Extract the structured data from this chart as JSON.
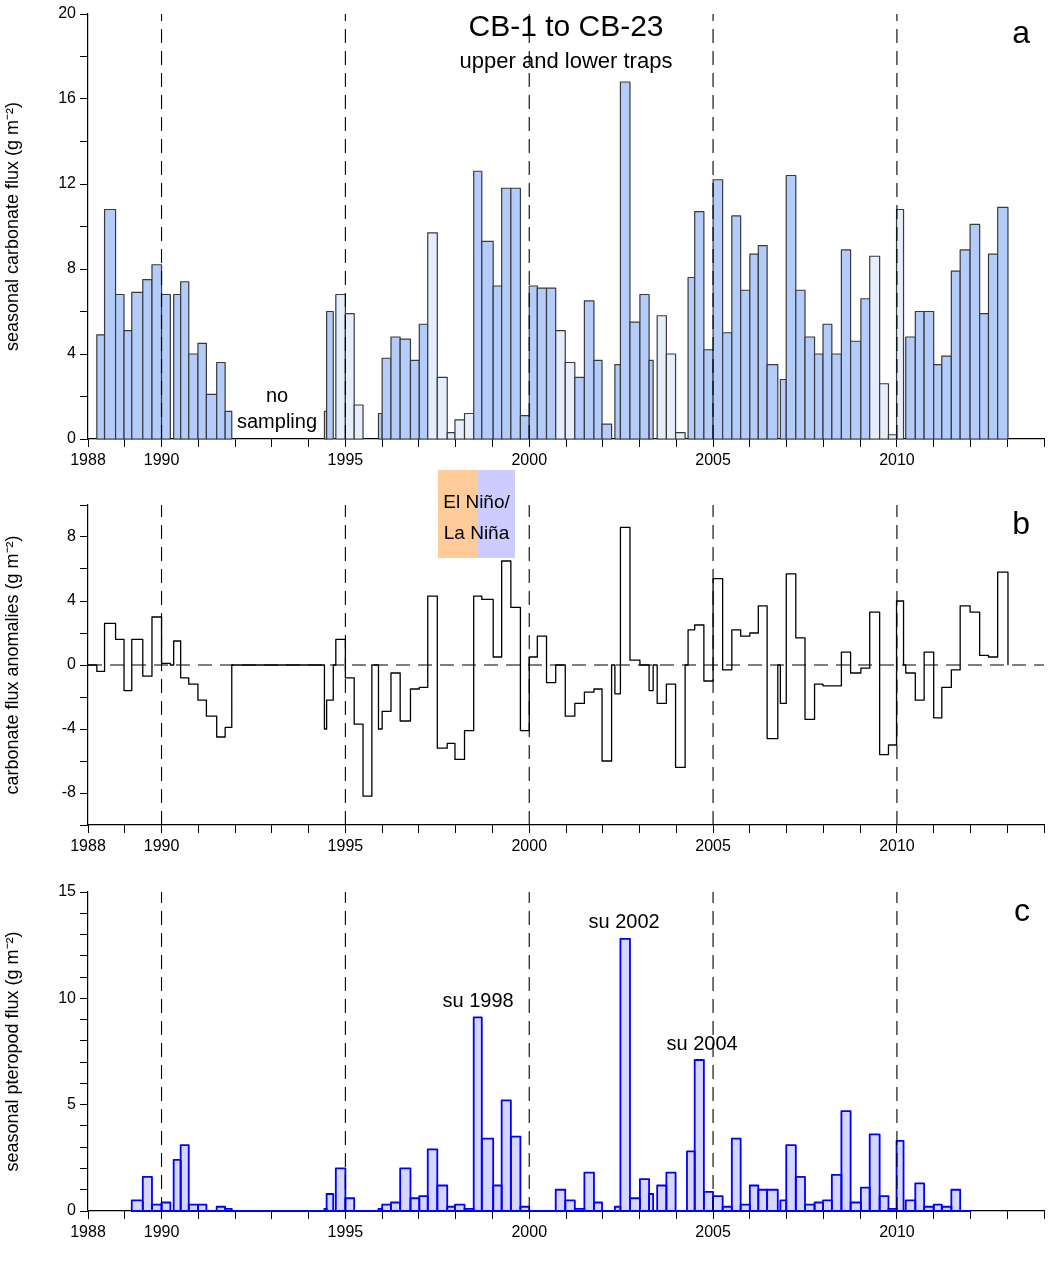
{
  "chart_data": [
    {
      "type": "histogram",
      "title": "CB-1 to CB-23",
      "subtitle": "upper and lower traps",
      "ylabel": "seasonal carbonate flux (g m⁻²)",
      "bins": [
        1988.24,
        1988.45,
        1988.75,
        1988.98,
        1989.19,
        1989.49,
        1989.74,
        1990.0,
        1990.24,
        1990.33,
        1990.52,
        1990.74,
        1990.99,
        1991.22,
        1991.5,
        1991.73,
        1991.91,
        1994.43,
        1994.49,
        1994.67,
        1994.74,
        1995.0,
        1995.24,
        1995.48,
        1995.9,
        1996.0,
        1996.24,
        1996.49,
        1996.77,
        1997.01,
        1997.24,
        1997.5,
        1997.77,
        1997.98,
        1998.24,
        1998.49,
        1998.71,
        1999.02,
        1999.25,
        1999.5,
        1999.76,
        2000.0,
        2000.22,
        2000.47,
        2000.72,
        2000.98,
        2001.24,
        2001.5,
        2001.76,
        2001.98,
        2002.24,
        2002.33,
        2002.48,
        2002.74,
        2003.01,
        2003.26,
        2003.37,
        2003.48,
        2003.73,
        2003.98,
        2004.24,
        2004.32,
        2004.5,
        2004.75,
        2005.0,
        2005.26,
        2005.51,
        2005.75,
        2006.0,
        2006.23,
        2006.47,
        2006.76,
        2006.83,
        2006.99,
        2007.25,
        2007.5,
        2007.76,
        2007.99,
        2008.23,
        2008.49,
        2008.74,
        2009.02,
        2009.26,
        2009.53,
        2009.77,
        2009.99,
        2010.18,
        2010.24,
        2010.5,
        2010.74,
        2011.0,
        2011.22,
        2011.48,
        2011.72,
        2011.99,
        2012.25,
        2012.49,
        2012.74,
        2013.02
      ],
      "values": [
        4.9,
        10.8,
        6.8,
        5.1,
        6.9,
        7.5,
        8.2,
        6.8,
        null,
        6.8,
        7.4,
        4.0,
        4.5,
        2.1,
        3.6,
        1.3,
        null,
        1.3,
        6.0,
        null,
        6.8,
        5.9,
        1.6,
        null,
        1.2,
        3.8,
        4.8,
        4.7,
        3.7,
        5.4,
        9.7,
        2.9,
        0.3,
        0.9,
        1.2,
        12.6,
        9.3,
        7.2,
        11.8,
        11.8,
        1.1,
        7.2,
        7.1,
        7.1,
        5.1,
        3.6,
        2.9,
        6.5,
        3.7,
        0.7,
        null,
        3.5,
        16.8,
        5.5,
        6.8,
        3.7,
        null,
        5.8,
        4.0,
        0.3,
        null,
        7.6,
        10.7,
        4.2,
        12.2,
        5.0,
        10.5,
        7.0,
        8.7,
        9.1,
        3.5,
        null,
        2.8,
        12.4,
        7.0,
        4.8,
        4.0,
        5.4,
        4.0,
        8.9,
        4.6,
        6.6,
        8.6,
        2.6,
        0.2,
        10.8,
        null,
        4.8,
        6.0,
        6.0,
        3.5,
        3.9,
        7.9,
        8.9,
        10.1,
        5.9,
        8.7,
        10.9
      ],
      "colors": [
        "#b3ccfa",
        "#b3ccfa",
        "#b3ccfa",
        "#b3ccfa",
        "#b3ccfa",
        "#b3ccfa",
        "#b3ccfa",
        "#b3ccfa",
        null,
        "#b3ccfa",
        "#b3ccfa",
        "#b3ccfa",
        "#b3ccfa",
        "#b3ccfa",
        "#b3ccfa",
        "#b3ccfa",
        null,
        "#b3ccfa",
        "#b3ccfa",
        null,
        "#e6eefc",
        "#e6eefc",
        "#e6eefc",
        null,
        "#b3ccfa",
        "#b3ccfa",
        "#b3ccfa",
        "#b3ccfa",
        "#b3ccfa",
        "#b3ccfa",
        "#e6eefc",
        "#e6eefc",
        "#e6eefc",
        "#e6eefc",
        "#e6eefc",
        "#b3ccfa",
        "#b3ccfa",
        "#b3ccfa",
        "#b3ccfa",
        "#b3ccfa",
        "#b3ccfa",
        "#b3ccfa",
        "#b3ccfa",
        "#b3ccfa",
        "#e6eefc",
        "#e6eefc",
        "#b3ccfa",
        "#b3ccfa",
        "#b3ccfa",
        "#b3ccfa",
        null,
        "#b3ccfa",
        "#b3ccfa",
        "#b3ccfa",
        "#b3ccfa",
        "#b3ccfa",
        null,
        "#e6eefc",
        "#e6eefc",
        "#e6eefc",
        null,
        "#b3ccfa",
        "#b3ccfa",
        "#b3ccfa",
        "#b3ccfa",
        "#b3ccfa",
        "#b3ccfa",
        "#b3ccfa",
        "#b3ccfa",
        "#b3ccfa",
        "#b3ccfa",
        null,
        "#b3ccfa",
        "#b3ccfa",
        "#b3ccfa",
        "#b3ccfa",
        "#b3ccfa",
        "#b3ccfa",
        "#b3ccfa",
        "#b3ccfa",
        "#b3ccfa",
        "#b3ccfa",
        "#e6eefc",
        "#e6eefc",
        "#e6eefc",
        "#e6eefc",
        null,
        "#b3ccfa",
        "#b3ccfa",
        "#b3ccfa",
        "#b3ccfa",
        "#b3ccfa",
        "#b3ccfa",
        "#b3ccfa",
        "#b3ccfa",
        "#b3ccfa",
        "#b3ccfa",
        "#b3ccfa"
      ],
      "xlim": [
        1988,
        2014
      ],
      "xticks": [
        1988,
        {
          "value": 1989,
          "label": null
        },
        1990,
        {
          "value": 1991,
          "label": null
        },
        {
          "value": 1992,
          "label": null
        },
        {
          "value": 1993,
          "label": null
        },
        {
          "value": 1994,
          "label": null
        },
        1995,
        {
          "value": 1996,
          "label": null
        },
        {
          "value": 1997,
          "label": null
        },
        {
          "value": 1998,
          "label": null
        },
        {
          "value": 1999,
          "label": null
        },
        2000,
        {
          "value": 2001,
          "label": null
        },
        {
          "value": 2002,
          "label": null
        },
        {
          "value": 2003,
          "label": null
        },
        {
          "value": 2004,
          "label": null
        },
        2005,
        {
          "value": 2006,
          "label": null
        },
        {
          "value": 2007,
          "label": null
        },
        {
          "value": 2008,
          "label": null
        },
        {
          "value": 2009,
          "label": null
        },
        2010,
        {
          "value": 2011,
          "label": null
        },
        {
          "value": 2012,
          "label": null
        },
        {
          "value": 2013,
          "label": null
        },
        {
          "value": 2014,
          "label": null
        }
      ],
      "ylim": [
        0,
        20
      ],
      "yticks": [
        0,
        {
          "value": 2,
          "label": null
        },
        4,
        {
          "value": 6,
          "label": null
        },
        8,
        {
          "value": 10,
          "label": null
        },
        12,
        {
          "value": 14,
          "label": null
        },
        16,
        {
          "value": 18,
          "label": null
        },
        20
      ],
      "ref_lines": [
        {
          "axis": "x",
          "value": 1990,
          "line_style": "dashed"
        },
        {
          "axis": "x",
          "value": 1995,
          "line_style": "dashed"
        },
        {
          "axis": "x",
          "value": 2000,
          "line_style": "dashed"
        },
        {
          "axis": "x",
          "value": 2005,
          "line_style": "dashed"
        },
        {
          "axis": "x",
          "value": 2010,
          "line_style": "dashed"
        }
      ],
      "annotations": [
        "a",
        "no sampling"
      ]
    },
    {
      "type": "step",
      "ylabel": "carbonate flux anomalies (g m⁻²)",
      "color": "#000000",
      "x": [
        1988.0,
        1988.24,
        1988.45,
        1988.75,
        1988.98,
        1989.19,
        1989.49,
        1989.74,
        1990.0,
        1990.24,
        1990.33,
        1990.52,
        1990.74,
        1990.99,
        1991.22,
        1991.5,
        1991.73,
        1991.91,
        1994.43,
        1994.49,
        1994.67,
        1994.74,
        1995.0,
        1995.24,
        1995.48,
        1995.72,
        1995.9,
        1996.0,
        1996.24,
        1996.49,
        1996.77,
        1997.01,
        1997.24,
        1997.5,
        1997.77,
        1997.98,
        1998.24,
        1998.49,
        1998.71,
        1999.02,
        1999.25,
        1999.5,
        1999.76,
        2000.0,
        2000.22,
        2000.47,
        2000.72,
        2000.98,
        2001.24,
        2001.5,
        2001.76,
        2001.98,
        2002.24,
        2002.33,
        2002.48,
        2002.74,
        2003.01,
        2003.26,
        2003.37,
        2003.48,
        2003.73,
        2003.98,
        2004.24,
        2004.32,
        2004.5,
        2004.75,
        2005.0,
        2005.26,
        2005.51,
        2005.75,
        2006.0,
        2006.23,
        2006.47,
        2006.76,
        2006.83,
        2006.99,
        2007.25,
        2007.5,
        2007.76,
        2007.99,
        2008.23,
        2008.49,
        2008.74,
        2009.02,
        2009.26,
        2009.53,
        2009.77,
        2009.99,
        2010.18,
        2010.24,
        2010.5,
        2010.74,
        2011.0,
        2011.22,
        2011.48,
        2011.72,
        2011.99,
        2012.25,
        2012.49,
        2012.74,
        2013.02
      ],
      "values": [
        0,
        -0.4,
        2.6,
        1.6,
        -1.6,
        1.6,
        -0.7,
        3.0,
        0.1,
        0,
        1.5,
        -0.8,
        -1.2,
        -2.2,
        -3.2,
        -4.5,
        -3.9,
        0,
        -4.0,
        -2.2,
        0,
        1.6,
        -0.8,
        -3.7,
        -8.2,
        0,
        -4.0,
        -2.9,
        -0.5,
        -3.5,
        -1.5,
        -1.4,
        4.3,
        -5.2,
        -4.9,
        -5.9,
        -4.1,
        4.3,
        4.1,
        0.5,
        6.5,
        3.6,
        -4.1,
        0.5,
        1.8,
        -1.1,
        0,
        -3.2,
        -2.4,
        -1.7,
        -1.5,
        -6.0,
        0,
        -1.8,
        8.6,
        0.3,
        0.0,
        -1.6,
        0.0,
        -2.4,
        -1.2,
        -6.4,
        0,
        2.2,
        2.5,
        -1.0,
        5.4,
        -0.3,
        2.2,
        1.8,
        2.0,
        3.7,
        -4.6,
        0,
        -2.4,
        5.7,
        1.7,
        -3.4,
        -1.2,
        -1.3,
        -1.3,
        0.8,
        -0.5,
        -0.2,
        3.3,
        -5.6,
        -5.0,
        4.0,
        0,
        -0.5,
        -2.2,
        0.8,
        -3.3,
        -1.4,
        -0.3,
        3.7,
        3.3,
        0.6,
        0.5,
        5.8,
        0
      ],
      "xlim": [
        1988,
        2014
      ],
      "xticks": [
        1988,
        {
          "value": 1989,
          "label": null
        },
        1990,
        {
          "value": 1991,
          "label": null
        },
        {
          "value": 1992,
          "label": null
        },
        {
          "value": 1993,
          "label": null
        },
        {
          "value": 1994,
          "label": null
        },
        1995,
        {
          "value": 1996,
          "label": null
        },
        {
          "value": 1997,
          "label": null
        },
        {
          "value": 1998,
          "label": null
        },
        {
          "value": 1999,
          "label": null
        },
        2000,
        {
          "value": 2001,
          "label": null
        },
        {
          "value": 2002,
          "label": null
        },
        {
          "value": 2003,
          "label": null
        },
        {
          "value": 2004,
          "label": null
        },
        2005,
        {
          "value": 2006,
          "label": null
        },
        {
          "value": 2007,
          "label": null
        },
        {
          "value": 2008,
          "label": null
        },
        {
          "value": 2009,
          "label": null
        },
        2010,
        {
          "value": 2011,
          "label": null
        },
        {
          "value": 2012,
          "label": null
        },
        {
          "value": 2013,
          "label": null
        },
        {
          "value": 2014,
          "label": null
        }
      ],
      "ylim": [
        -10,
        10
      ],
      "yticks": [
        {
          "value": -10,
          "label": null
        },
        -8,
        {
          "value": -6,
          "label": null
        },
        -4,
        {
          "value": -2,
          "label": null
        },
        0,
        {
          "value": 2,
          "label": null
        },
        4,
        {
          "value": 6,
          "label": null
        },
        8,
        {
          "value": 10,
          "label": null
        }
      ],
      "ref_lines": [
        {
          "axis": "y",
          "value": 0,
          "line_style": "dashed"
        },
        {
          "axis": "x",
          "value": 1990,
          "line_style": "dashed"
        },
        {
          "axis": "x",
          "value": 1995,
          "line_style": "dashed"
        },
        {
          "axis": "x",
          "value": 2000,
          "line_style": "dashed"
        },
        {
          "axis": "x",
          "value": 2005,
          "line_style": "dashed"
        },
        {
          "axis": "x",
          "value": 2010,
          "line_style": "dashed"
        }
      ],
      "annotations": [
        "b",
        "El Niño/ La Niña"
      ]
    },
    {
      "type": "histogram",
      "ylabel": "seasonal pteropod flux (g m⁻²)",
      "color": "#0000ff",
      "bins": [
        1989.19,
        1989.49,
        1989.74,
        1990.0,
        1990.24,
        1990.33,
        1990.52,
        1990.74,
        1990.99,
        1991.22,
        1991.5,
        1991.73,
        1991.91,
        1994.43,
        1994.49,
        1994.67,
        1994.74,
        1995.0,
        1995.24,
        1995.9,
        1996.0,
        1996.24,
        1996.49,
        1996.77,
        1997.01,
        1997.24,
        1997.5,
        1997.77,
        1997.98,
        1998.24,
        1998.49,
        1998.71,
        1999.02,
        1999.25,
        1999.5,
        1999.76,
        2000.0,
        2000.72,
        2000.98,
        2001.24,
        2001.5,
        2001.76,
        2001.98,
        2002.24,
        2002.33,
        2002.48,
        2002.74,
        2003.01,
        2003.26,
        2003.37,
        2003.48,
        2003.73,
        2003.98,
        2004.29,
        2004.5,
        2004.75,
        2005.0,
        2005.26,
        2005.51,
        2005.75,
        2006.0,
        2006.23,
        2006.47,
        2006.76,
        2006.83,
        2006.99,
        2007.25,
        2007.5,
        2007.76,
        2007.99,
        2008.23,
        2008.49,
        2008.74,
        2009.02,
        2009.26,
        2009.53,
        2009.77,
        2009.99,
        2010.18,
        2010.24,
        2010.5,
        2010.74,
        2011.0,
        2011.22,
        2011.48,
        2011.72,
        2011.99
      ],
      "values": [
        0.5,
        1.6,
        0.3,
        0.4,
        0,
        2.4,
        3.1,
        0.3,
        0.3,
        0.0,
        0.2,
        0.1,
        0,
        0.1,
        0.8,
        0,
        2.0,
        0.6,
        0,
        0.1,
        0.3,
        0.4,
        2.0,
        0.6,
        0.7,
        2.9,
        1.2,
        0.2,
        0.3,
        0.1,
        9.1,
        3.4,
        1.2,
        5.2,
        3.5,
        0.2,
        0,
        1.0,
        0.5,
        0.1,
        1.8,
        0.4,
        0.0,
        0,
        0.2,
        12.8,
        0.6,
        1.5,
        0.8,
        0,
        1.2,
        1.8,
        0.0,
        2.8,
        7.1,
        0.9,
        0.7,
        0.2,
        3.4,
        0.3,
        1.2,
        1.0,
        1.0,
        0,
        0.5,
        3.1,
        1.6,
        0.3,
        0.4,
        0.5,
        1.7,
        4.7,
        0.4,
        1.1,
        3.6,
        0.7,
        0.1,
        3.3,
        0,
        0.5,
        1.3,
        0.2,
        0.3,
        0.2,
        1.0,
        0
      ],
      "xlim": [
        1988,
        2014
      ],
      "xticks": [
        1988,
        {
          "value": 1989,
          "label": null
        },
        1990,
        {
          "value": 1991,
          "label": null
        },
        {
          "value": 1992,
          "label": null
        },
        {
          "value": 1993,
          "label": null
        },
        {
          "value": 1994,
          "label": null
        },
        1995,
        {
          "value": 1996,
          "label": null
        },
        {
          "value": 1997,
          "label": null
        },
        {
          "value": 1998,
          "label": null
        },
        {
          "value": 1999,
          "label": null
        },
        2000,
        {
          "value": 2001,
          "label": null
        },
        {
          "value": 2002,
          "label": null
        },
        {
          "value": 2003,
          "label": null
        },
        {
          "value": 2004,
          "label": null
        },
        2005,
        {
          "value": 2006,
          "label": null
        },
        {
          "value": 2007,
          "label": null
        },
        {
          "value": 2008,
          "label": null
        },
        {
          "value": 2009,
          "label": null
        },
        2010,
        {
          "value": 2011,
          "label": null
        },
        {
          "value": 2012,
          "label": null
        },
        {
          "value": 2013,
          "label": null
        },
        {
          "value": 2014,
          "label": null
        }
      ],
      "ylim": [
        0,
        15
      ],
      "yticks": [
        0,
        {
          "value": 1,
          "label": null
        },
        {
          "value": 2,
          "label": null
        },
        {
          "value": 3,
          "label": null
        },
        {
          "value": 4,
          "label": null
        },
        5,
        {
          "value": 6,
          "label": null
        },
        {
          "value": 7,
          "label": null
        },
        {
          "value": 8,
          "label": null
        },
        {
          "value": 9,
          "label": null
        },
        10,
        {
          "value": 11,
          "label": null
        },
        {
          "value": 12,
          "label": null
        },
        {
          "value": 13,
          "label": null
        },
        {
          "value": 14,
          "label": null
        },
        15
      ],
      "ref_lines": [
        {
          "axis": "x",
          "value": 1990,
          "line_style": "dashed"
        },
        {
          "axis": "x",
          "value": 1995,
          "line_style": "dashed"
        },
        {
          "axis": "x",
          "value": 2000,
          "line_style": "dashed"
        },
        {
          "axis": "x",
          "value": 2005,
          "line_style": "dashed"
        },
        {
          "axis": "x",
          "value": 2010,
          "line_style": "dashed"
        }
      ],
      "annotations": [
        "c",
        {
          "text": "su 1998",
          "x": 1998.61,
          "y": 9.1
        },
        {
          "text": "su 2002",
          "x": 2002.58,
          "y": 12.8
        },
        {
          "text": "su 2004",
          "x": 2004.7,
          "y": 7.1
        }
      ]
    }
  ]
}
